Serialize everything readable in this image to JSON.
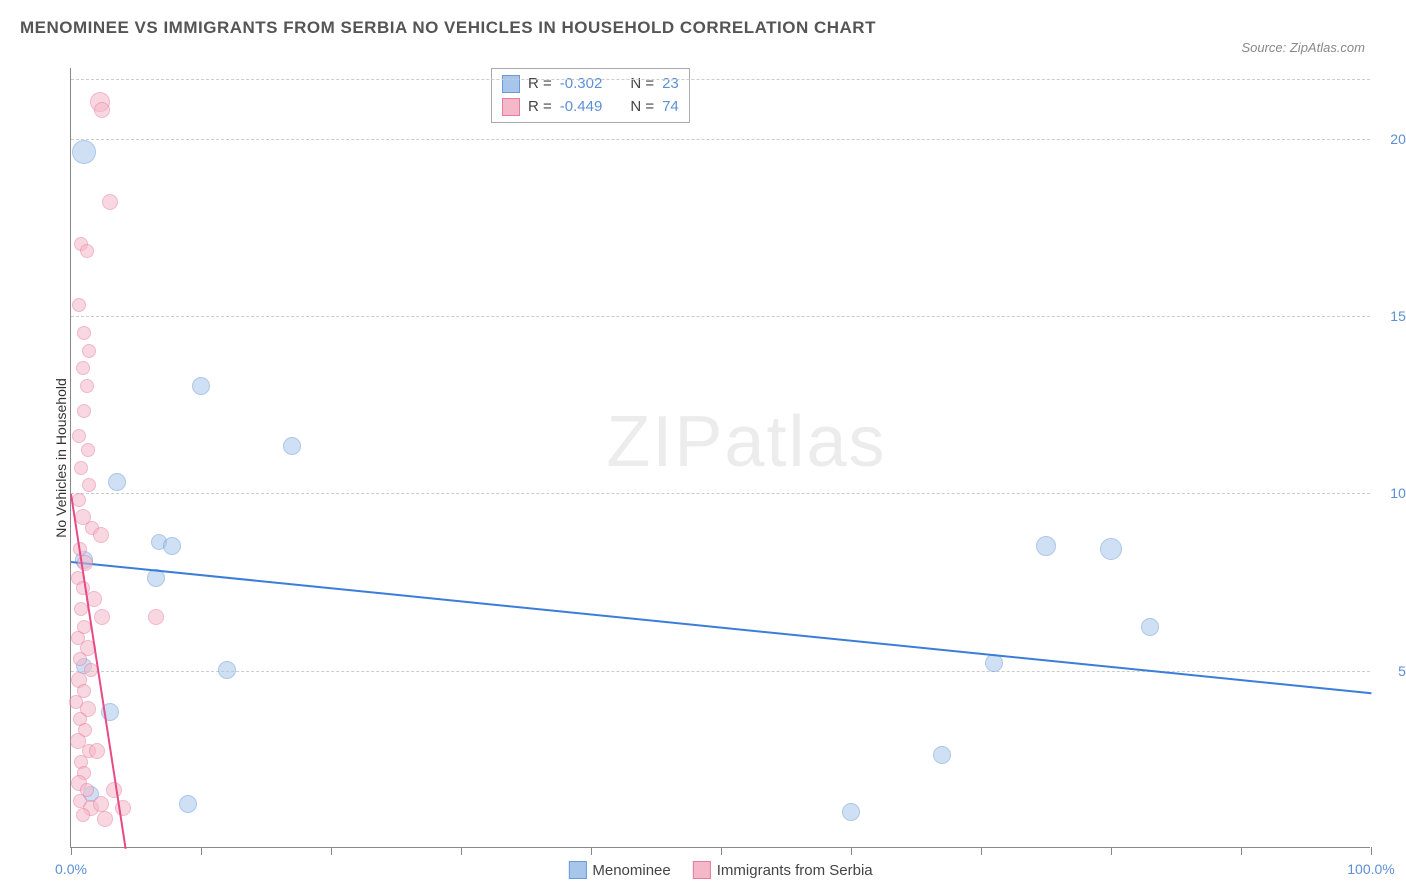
{
  "title": "MENOMINEE VS IMMIGRANTS FROM SERBIA NO VEHICLES IN HOUSEHOLD CORRELATION CHART",
  "source_label": "Source: ",
  "source_name": "ZipAtlas.com",
  "watermark_a": "ZIP",
  "watermark_b": "atlas",
  "y_axis_label": "No Vehicles in Household",
  "chart": {
    "type": "scatter",
    "x_domain": [
      0,
      100
    ],
    "y_domain": [
      0,
      22
    ],
    "x_ticks": [
      0,
      10,
      20,
      30,
      40,
      50,
      60,
      70,
      80,
      90,
      100
    ],
    "x_tick_labels": {
      "0": "0.0%",
      "100": "100.0%"
    },
    "y_gridlines": [
      5,
      10,
      15,
      20,
      21.7
    ],
    "y_tick_labels": {
      "5": "5.0%",
      "10": "10.0%",
      "15": "15.0%",
      "20": "20.0%"
    },
    "background_color": "#ffffff",
    "grid_color": "#cccccc",
    "axis_color": "#888888",
    "series": [
      {
        "name": "Menominee",
        "fill": "#a8c6ec",
        "stroke": "#6a9bd8",
        "fill_opacity": 0.55,
        "points": [
          {
            "x": 1.0,
            "y": 19.6,
            "r": 12
          },
          {
            "x": 3.5,
            "y": 10.3,
            "r": 9
          },
          {
            "x": 10.0,
            "y": 13.0,
            "r": 9
          },
          {
            "x": 17.0,
            "y": 11.3,
            "r": 9
          },
          {
            "x": 6.8,
            "y": 8.6,
            "r": 8
          },
          {
            "x": 7.8,
            "y": 8.5,
            "r": 9
          },
          {
            "x": 1.0,
            "y": 8.1,
            "r": 9
          },
          {
            "x": 6.5,
            "y": 7.6,
            "r": 9
          },
          {
            "x": 1.0,
            "y": 5.1,
            "r": 8
          },
          {
            "x": 12.0,
            "y": 5.0,
            "r": 9
          },
          {
            "x": 3.0,
            "y": 3.8,
            "r": 9
          },
          {
            "x": 1.5,
            "y": 1.5,
            "r": 8
          },
          {
            "x": 9.0,
            "y": 1.2,
            "r": 9
          },
          {
            "x": 71.0,
            "y": 5.2,
            "r": 9
          },
          {
            "x": 67.0,
            "y": 2.6,
            "r": 9
          },
          {
            "x": 60.0,
            "y": 1.0,
            "r": 9
          },
          {
            "x": 75.0,
            "y": 8.5,
            "r": 10
          },
          {
            "x": 80.0,
            "y": 8.4,
            "r": 11
          },
          {
            "x": 83.0,
            "y": 6.2,
            "r": 9
          }
        ],
        "trendline": {
          "x1": 0,
          "y1": 8.1,
          "x2": 100,
          "y2": 4.4,
          "color": "#3b7dd8",
          "width": 2
        }
      },
      {
        "name": "Immigrants from Serbia",
        "fill": "#f5b8c9",
        "stroke": "#e87ba0",
        "fill_opacity": 0.55,
        "points": [
          {
            "x": 2.2,
            "y": 21.0,
            "r": 10
          },
          {
            "x": 2.4,
            "y": 20.8,
            "r": 8
          },
          {
            "x": 3.0,
            "y": 18.2,
            "r": 8
          },
          {
            "x": 0.8,
            "y": 17.0,
            "r": 7
          },
          {
            "x": 1.2,
            "y": 16.8,
            "r": 7
          },
          {
            "x": 0.6,
            "y": 15.3,
            "r": 7
          },
          {
            "x": 1.0,
            "y": 14.5,
            "r": 7
          },
          {
            "x": 1.4,
            "y": 14.0,
            "r": 7
          },
          {
            "x": 0.9,
            "y": 13.5,
            "r": 7
          },
          {
            "x": 1.2,
            "y": 13.0,
            "r": 7
          },
          {
            "x": 1.0,
            "y": 12.3,
            "r": 7
          },
          {
            "x": 0.6,
            "y": 11.6,
            "r": 7
          },
          {
            "x": 1.3,
            "y": 11.2,
            "r": 7
          },
          {
            "x": 0.8,
            "y": 10.7,
            "r": 7
          },
          {
            "x": 1.4,
            "y": 10.2,
            "r": 7
          },
          {
            "x": 0.6,
            "y": 9.8,
            "r": 7
          },
          {
            "x": 0.9,
            "y": 9.3,
            "r": 8
          },
          {
            "x": 1.6,
            "y": 9.0,
            "r": 7
          },
          {
            "x": 2.3,
            "y": 8.8,
            "r": 8
          },
          {
            "x": 0.7,
            "y": 8.4,
            "r": 7
          },
          {
            "x": 1.1,
            "y": 8.0,
            "r": 8
          },
          {
            "x": 0.5,
            "y": 7.6,
            "r": 7
          },
          {
            "x": 0.9,
            "y": 7.3,
            "r": 7
          },
          {
            "x": 1.8,
            "y": 7.0,
            "r": 8
          },
          {
            "x": 0.8,
            "y": 6.7,
            "r": 7
          },
          {
            "x": 2.4,
            "y": 6.5,
            "r": 8
          },
          {
            "x": 6.5,
            "y": 6.5,
            "r": 8
          },
          {
            "x": 1.0,
            "y": 6.2,
            "r": 7
          },
          {
            "x": 0.5,
            "y": 5.9,
            "r": 7
          },
          {
            "x": 1.3,
            "y": 5.6,
            "r": 8
          },
          {
            "x": 0.7,
            "y": 5.3,
            "r": 7
          },
          {
            "x": 1.5,
            "y": 5.0,
            "r": 7
          },
          {
            "x": 0.6,
            "y": 4.7,
            "r": 8
          },
          {
            "x": 1.0,
            "y": 4.4,
            "r": 7
          },
          {
            "x": 0.4,
            "y": 4.1,
            "r": 7
          },
          {
            "x": 1.3,
            "y": 3.9,
            "r": 8
          },
          {
            "x": 0.7,
            "y": 3.6,
            "r": 7
          },
          {
            "x": 1.1,
            "y": 3.3,
            "r": 7
          },
          {
            "x": 0.5,
            "y": 3.0,
            "r": 8
          },
          {
            "x": 1.4,
            "y": 2.7,
            "r": 7
          },
          {
            "x": 0.8,
            "y": 2.4,
            "r": 7
          },
          {
            "x": 2.0,
            "y": 2.7,
            "r": 8
          },
          {
            "x": 1.0,
            "y": 2.1,
            "r": 7
          },
          {
            "x": 0.6,
            "y": 1.8,
            "r": 8
          },
          {
            "x": 1.2,
            "y": 1.6,
            "r": 7
          },
          {
            "x": 0.7,
            "y": 1.3,
            "r": 7
          },
          {
            "x": 3.3,
            "y": 1.6,
            "r": 8
          },
          {
            "x": 1.5,
            "y": 1.1,
            "r": 8
          },
          {
            "x": 0.9,
            "y": 0.9,
            "r": 7
          },
          {
            "x": 2.3,
            "y": 1.2,
            "r": 8
          },
          {
            "x": 2.6,
            "y": 0.8,
            "r": 8
          },
          {
            "x": 4.0,
            "y": 1.1,
            "r": 8
          }
        ],
        "trendline": {
          "x1": 0,
          "y1": 10.0,
          "x2": 4.2,
          "y2": 0,
          "color": "#e64b86",
          "width": 2
        }
      }
    ]
  },
  "legend_top": {
    "rows": [
      {
        "swatch_fill": "#a8c6ec",
        "swatch_stroke": "#6a9bd8",
        "r_label": "R = ",
        "r_value": "-0.302",
        "n_label": "N = ",
        "n_value": "23"
      },
      {
        "swatch_fill": "#f5b8c9",
        "swatch_stroke": "#e87ba0",
        "r_label": "R = ",
        "r_value": "-0.449",
        "n_label": "N = ",
        "n_value": "74"
      }
    ]
  },
  "legend_bottom": {
    "items": [
      {
        "swatch_fill": "#a8c6ec",
        "swatch_stroke": "#6a9bd8",
        "label": "Menominee"
      },
      {
        "swatch_fill": "#f5b8c9",
        "swatch_stroke": "#e87ba0",
        "label": "Immigrants from Serbia"
      }
    ]
  }
}
